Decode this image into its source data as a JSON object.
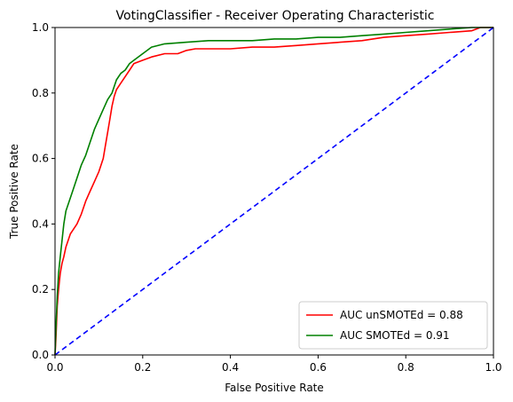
{
  "chart_data": {
    "type": "line",
    "title": "VotingClassifier - Receiver Operating Characteristic",
    "xlabel": "False Positive Rate",
    "ylabel": "True Positive Rate",
    "xlim": [
      0,
      1
    ],
    "ylim": [
      0,
      1
    ],
    "xticks": [
      "0.0",
      "0.2",
      "0.4",
      "0.6",
      "0.8",
      "1.0"
    ],
    "yticks": [
      "0.0",
      "0.2",
      "0.4",
      "0.6",
      "0.8",
      "1.0"
    ],
    "grid": false,
    "legend_position": "lower-right",
    "series": [
      {
        "name": "AUC unSMOTEd = 0.88",
        "color": "#ff0000",
        "style": "solid",
        "x": [
          0,
          0.002,
          0.005,
          0.008,
          0.012,
          0.016,
          0.02,
          0.025,
          0.03,
          0.035,
          0.04,
          0.05,
          0.06,
          0.07,
          0.08,
          0.09,
          0.1,
          0.11,
          0.115,
          0.12,
          0.125,
          0.13,
          0.135,
          0.14,
          0.15,
          0.16,
          0.17,
          0.18,
          0.2,
          0.22,
          0.25,
          0.28,
          0.3,
          0.32,
          0.35,
          0.4,
          0.45,
          0.5,
          0.55,
          0.6,
          0.65,
          0.7,
          0.75,
          0.8,
          0.85,
          0.9,
          0.95,
          0.97,
          1.0
        ],
        "y": [
          0,
          0.05,
          0.15,
          0.2,
          0.25,
          0.28,
          0.3,
          0.33,
          0.35,
          0.37,
          0.38,
          0.4,
          0.43,
          0.47,
          0.5,
          0.53,
          0.56,
          0.6,
          0.64,
          0.68,
          0.72,
          0.76,
          0.79,
          0.81,
          0.83,
          0.85,
          0.87,
          0.89,
          0.9,
          0.91,
          0.92,
          0.92,
          0.93,
          0.935,
          0.935,
          0.935,
          0.94,
          0.94,
          0.945,
          0.95,
          0.955,
          0.96,
          0.97,
          0.975,
          0.98,
          0.985,
          0.99,
          1.0,
          1.0
        ]
      },
      {
        "name": "AUC SMOTEd = 0.91",
        "color": "#008000",
        "style": "solid",
        "x": [
          0,
          0.002,
          0.005,
          0.008,
          0.012,
          0.016,
          0.02,
          0.025,
          0.03,
          0.035,
          0.04,
          0.05,
          0.06,
          0.07,
          0.08,
          0.09,
          0.1,
          0.11,
          0.12,
          0.13,
          0.14,
          0.15,
          0.16,
          0.17,
          0.18,
          0.2,
          0.22,
          0.25,
          0.3,
          0.35,
          0.4,
          0.45,
          0.5,
          0.55,
          0.6,
          0.65,
          0.7,
          0.75,
          0.8,
          0.85,
          0.9,
          0.95,
          1.0
        ],
        "y": [
          0,
          0.08,
          0.18,
          0.25,
          0.3,
          0.35,
          0.4,
          0.44,
          0.46,
          0.48,
          0.5,
          0.54,
          0.58,
          0.61,
          0.65,
          0.69,
          0.72,
          0.75,
          0.78,
          0.8,
          0.84,
          0.86,
          0.87,
          0.89,
          0.9,
          0.92,
          0.94,
          0.95,
          0.955,
          0.96,
          0.96,
          0.96,
          0.965,
          0.965,
          0.97,
          0.97,
          0.975,
          0.98,
          0.985,
          0.99,
          0.995,
          1.0,
          1.0
        ]
      },
      {
        "name": "",
        "color": "#0000ff",
        "style": "dashed",
        "x": [
          0,
          1
        ],
        "y": [
          0,
          1
        ]
      }
    ],
    "legend": [
      "AUC unSMOTEd = 0.88",
      "AUC SMOTEd = 0.91"
    ]
  }
}
